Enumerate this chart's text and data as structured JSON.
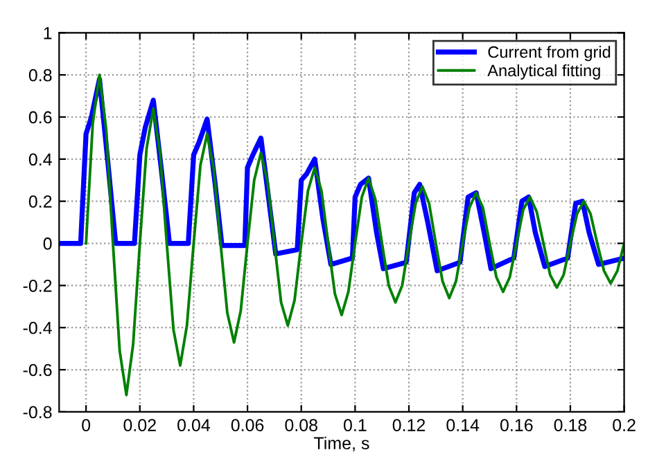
{
  "chart_data": {
    "type": "line",
    "xlabel": "Time, s",
    "series": [
      {
        "name": "Current from grid",
        "color": "#0000ff",
        "x": [
          -0.01,
          -0.002,
          0.0,
          0.002,
          0.005,
          0.008,
          0.011,
          0.018,
          0.02,
          0.022,
          0.025,
          0.028,
          0.031,
          0.038,
          0.04,
          0.042,
          0.045,
          0.048,
          0.0505,
          0.059,
          0.06,
          0.062,
          0.065,
          0.068,
          0.0705,
          0.0785,
          0.08,
          0.082,
          0.085,
          0.088,
          0.091,
          0.099,
          0.1,
          0.102,
          0.105,
          0.108,
          0.1105,
          0.119,
          0.122,
          0.124,
          0.127,
          0.1305,
          0.139,
          0.142,
          0.145,
          0.148,
          0.1505,
          0.159,
          0.162,
          0.1645,
          0.167,
          0.1705,
          0.179,
          0.182,
          0.1845,
          0.187,
          0.1905,
          0.2
        ],
        "values": [
          0,
          0,
          0.52,
          0.6,
          0.78,
          0.4,
          0,
          0,
          0.42,
          0.55,
          0.68,
          0.35,
          0,
          0,
          0.42,
          0.48,
          0.59,
          0.28,
          -0.01,
          -0.01,
          0.36,
          0.42,
          0.5,
          0.2,
          -0.05,
          -0.03,
          0.3,
          0.33,
          0.4,
          0.12,
          -0.1,
          -0.07,
          0.22,
          0.28,
          0.31,
          0.05,
          -0.12,
          -0.09,
          0.24,
          0.28,
          0.1,
          -0.13,
          -0.09,
          0.22,
          0.24,
          0.05,
          -0.12,
          -0.07,
          0.2,
          0.22,
          0.05,
          -0.11,
          -0.07,
          0.19,
          0.2,
          0.05,
          -0.1,
          -0.07
        ]
      },
      {
        "name": "Analytical fitting",
        "color": "#008000",
        "x": [
          0.0,
          0.0025,
          0.005,
          0.0075,
          0.01,
          0.0125,
          0.015,
          0.0175,
          0.02,
          0.0225,
          0.025,
          0.0275,
          0.03,
          0.0325,
          0.035,
          0.0375,
          0.04,
          0.0425,
          0.045,
          0.0475,
          0.05,
          0.0525,
          0.055,
          0.0575,
          0.06,
          0.0625,
          0.065,
          0.0675,
          0.07,
          0.0725,
          0.075,
          0.0775,
          0.08,
          0.0825,
          0.085,
          0.0875,
          0.09,
          0.0925,
          0.095,
          0.0975,
          0.1,
          0.1025,
          0.105,
          0.1075,
          0.11,
          0.1125,
          0.115,
          0.1175,
          0.12,
          0.1225,
          0.125,
          0.1275,
          0.13,
          0.1325,
          0.135,
          0.1375,
          0.14,
          0.1425,
          0.145,
          0.1475,
          0.15,
          0.1525,
          0.155,
          0.1575,
          0.16,
          0.1625,
          0.165,
          0.1675,
          0.17,
          0.1725,
          0.175,
          0.1775,
          0.18,
          0.1825,
          0.185,
          0.1875,
          0.19,
          0.1925,
          0.195,
          0.1975,
          0.2
        ],
        "values": [
          0,
          0.57,
          0.8,
          0.54,
          0,
          -0.51,
          -0.72,
          -0.48,
          0,
          0.45,
          0.64,
          0.43,
          0,
          -0.41,
          -0.58,
          -0.39,
          0,
          0.37,
          0.52,
          0.35,
          0,
          -0.33,
          -0.47,
          -0.32,
          0,
          0.3,
          0.43,
          0.29,
          0,
          -0.28,
          -0.39,
          -0.27,
          0,
          0.25,
          0.36,
          0.25,
          0,
          -0.24,
          -0.34,
          -0.23,
          0,
          0.22,
          0.31,
          0.21,
          0,
          -0.2,
          -0.28,
          -0.2,
          0,
          0.19,
          0.27,
          0.19,
          0,
          -0.18,
          -0.26,
          -0.18,
          0,
          0.17,
          0.24,
          0.17,
          0,
          -0.16,
          -0.23,
          -0.16,
          0,
          0.16,
          0.22,
          0.15,
          0,
          -0.15,
          -0.21,
          -0.15,
          0,
          0.14,
          0.2,
          0.14,
          0,
          -0.13,
          -0.19,
          -0.13,
          0
        ]
      }
    ],
    "xlim": [
      -0.01,
      0.2
    ],
    "ylim": [
      -0.8,
      1
    ],
    "xticks": [
      0,
      0.02,
      0.04,
      0.06,
      0.08,
      0.1,
      0.12,
      0.14,
      0.16,
      0.18,
      0.2
    ],
    "yticks": [
      -0.8,
      -0.6,
      -0.4,
      -0.2,
      0,
      0.2,
      0.4,
      0.6,
      0.8,
      1
    ],
    "grid": true,
    "legend": "top right",
    "line_style": "solid"
  }
}
